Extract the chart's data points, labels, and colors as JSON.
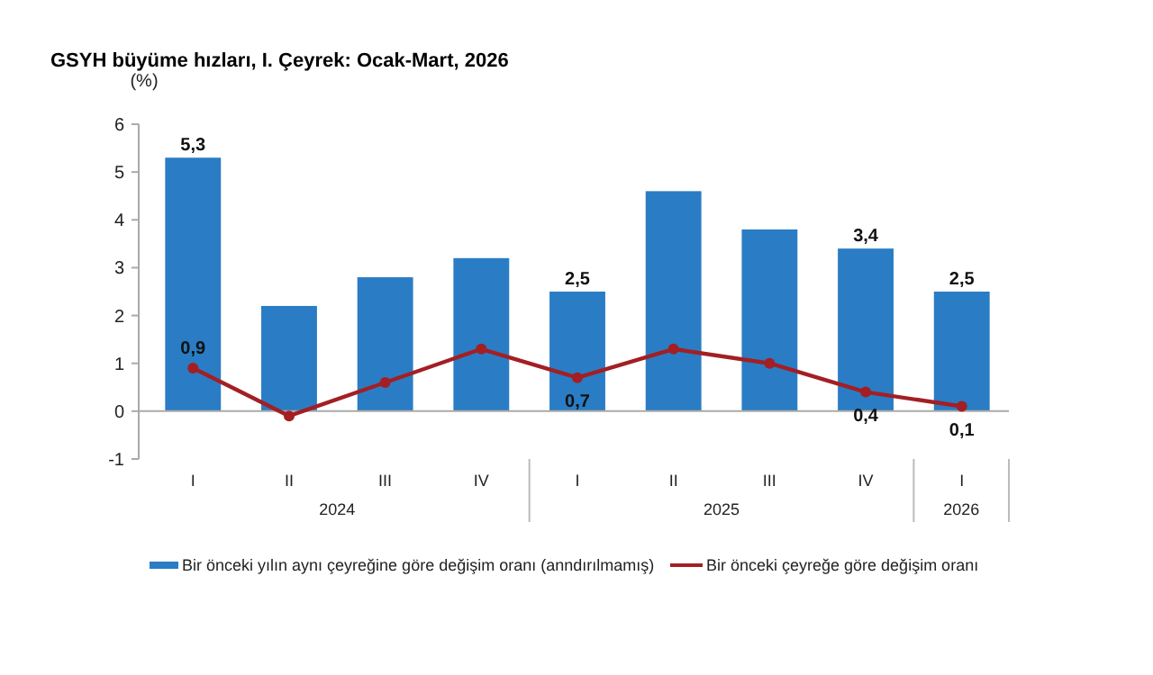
{
  "chart_data": {
    "type": "bar",
    "title": "GSYH büyüme hızları, I. Çeyrek: Ocak-Mart, 2026",
    "ylabel": "(%)",
    "categories": [
      "I",
      "II",
      "III",
      "IV",
      "I",
      "II",
      "III",
      "IV",
      "I"
    ],
    "annotations": [
      "2024",
      "2025",
      "2026"
    ],
    "series": [
      {
        "name": "Bir önceki yılın aynı çeyreğine göre değişim oranı (anndırılmamış)",
        "color": "#2a7dc4",
        "values": [
          5.3,
          2.2,
          2.8,
          3.2,
          2.5,
          4.6,
          3.8,
          3.4,
          2.5
        ],
        "value_labels": [
          "5,3",
          null,
          null,
          null,
          "2,5",
          null,
          null,
          "3,4",
          "2,5"
        ]
      },
      {
        "type": "line",
        "name": "Bir önceki çeyreğe göre değişim oranı",
        "color": "#a31f24",
        "values": [
          0.9,
          -0.1,
          0.6,
          1.3,
          0.7,
          1.3,
          1.0,
          0.4,
          0.1
        ],
        "value_labels": [
          "0,9",
          null,
          null,
          null,
          "0,7",
          null,
          null,
          "0,4",
          "0,1"
        ]
      }
    ],
    "ylim": [
      -1,
      6
    ],
    "yticks": [
      -1,
      0,
      1,
      2,
      3,
      4,
      5,
      6
    ],
    "legend": "bottom",
    "marker": "circle",
    "line_style": "solid"
  }
}
